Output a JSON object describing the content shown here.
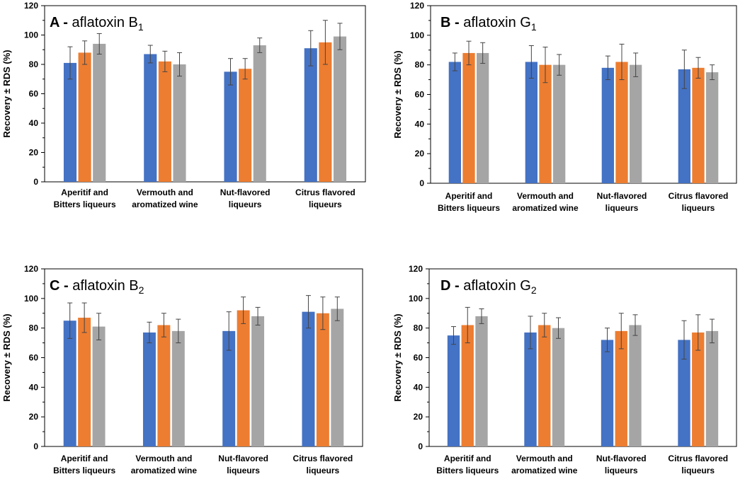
{
  "colors": {
    "series": [
      "#4472C4",
      "#ED7D31",
      "#A5A5A5"
    ],
    "errorbar": "#444444",
    "frame": "#000000"
  },
  "chart_data": [
    {
      "type": "bar",
      "letter": "A",
      "dash": "-",
      "title_text": "aflatoxin B",
      "title_sub": "1",
      "ylabel": "Recovery ± RDS (%)",
      "ylim": [
        0,
        120
      ],
      "yticks": [
        "0",
        "20",
        "40",
        "60",
        "80",
        "100",
        "120"
      ],
      "categories": [
        [
          "Aperitif and",
          "Bitters liqueurs"
        ],
        [
          "Vermouth and",
          "aromatized wine"
        ],
        [
          "Nut-flavored",
          "liqueurs"
        ],
        [
          "Citrus flavored",
          "liqueurs"
        ]
      ],
      "series": [
        {
          "values": [
            81,
            87,
            75,
            91
          ],
          "errors": [
            11,
            6,
            9,
            12
          ]
        },
        {
          "values": [
            88,
            82,
            77,
            95
          ],
          "errors": [
            8,
            7,
            7,
            15
          ]
        },
        {
          "values": [
            94,
            80,
            93,
            99
          ],
          "errors": [
            7,
            8,
            5,
            9
          ]
        }
      ]
    },
    {
      "type": "bar",
      "letter": "B",
      "dash": "-",
      "title_text": "aflatoxin G",
      "title_sub": "1",
      "ylabel": "Recovery ± RDS (%)",
      "ylim": [
        0,
        120
      ],
      "yticks": [
        "0",
        "20",
        "40",
        "60",
        "80",
        "100",
        "120"
      ],
      "categories": [
        [
          "Aperitif and",
          "Bitters liqueurs"
        ],
        [
          "Vermouth and",
          "aromatized wine"
        ],
        [
          "Nut-flavored",
          "liqueurs"
        ],
        [
          "Citrus flavored",
          "liqueurs"
        ]
      ],
      "series": [
        {
          "values": [
            82,
            82,
            78,
            77
          ],
          "errors": [
            6,
            11,
            8,
            13
          ]
        },
        {
          "values": [
            88,
            80,
            82,
            78
          ],
          "errors": [
            8,
            12,
            12,
            7
          ]
        },
        {
          "values": [
            88,
            80,
            80,
            75
          ],
          "errors": [
            7,
            7,
            8,
            5
          ]
        }
      ]
    },
    {
      "type": "bar",
      "letter": "C",
      "dash": "-",
      "title_text": "aflatoxin B",
      "title_sub": "2",
      "ylabel": "Recovery ± RDS (%)",
      "ylim": [
        0,
        120
      ],
      "yticks": [
        "0",
        "20",
        "40",
        "60",
        "80",
        "100",
        "120"
      ],
      "categories": [
        [
          "Aperitif and",
          "Bitters liqueurs"
        ],
        [
          "Vermouth and",
          "aromatized wine"
        ],
        [
          "Nut-flavored",
          "liqueurs"
        ],
        [
          "Citrus flavored",
          "liqueurs"
        ]
      ],
      "series": [
        {
          "values": [
            85,
            77,
            78,
            91
          ],
          "errors": [
            12,
            7,
            13,
            11
          ]
        },
        {
          "values": [
            87,
            82,
            92,
            90
          ],
          "errors": [
            10,
            8,
            9,
            11
          ]
        },
        {
          "values": [
            81,
            78,
            88,
            93
          ],
          "errors": [
            9,
            8,
            6,
            8
          ]
        }
      ]
    },
    {
      "type": "bar",
      "letter": "D",
      "dash": "-",
      "title_text": "aflatoxin G",
      "title_sub": "2",
      "ylabel": "Recovery ± RDS (%)",
      "ylim": [
        0,
        120
      ],
      "yticks": [
        "0",
        "20",
        "40",
        "60",
        "80",
        "100",
        "120"
      ],
      "categories": [
        [
          "Aperitif and",
          "Bitters liqueurs"
        ],
        [
          "Vermouth and",
          "aromatized wine"
        ],
        [
          "Nut-flavored",
          "liqueurs"
        ],
        [
          "Citrus flavored",
          "liqueurs"
        ]
      ],
      "series": [
        {
          "values": [
            75,
            77,
            72,
            72
          ],
          "errors": [
            6,
            11,
            8,
            13
          ]
        },
        {
          "values": [
            82,
            82,
            78,
            77
          ],
          "errors": [
            12,
            8,
            12,
            12
          ]
        },
        {
          "values": [
            88,
            80,
            82,
            78
          ],
          "errors": [
            5,
            7,
            7,
            8
          ]
        }
      ]
    }
  ]
}
